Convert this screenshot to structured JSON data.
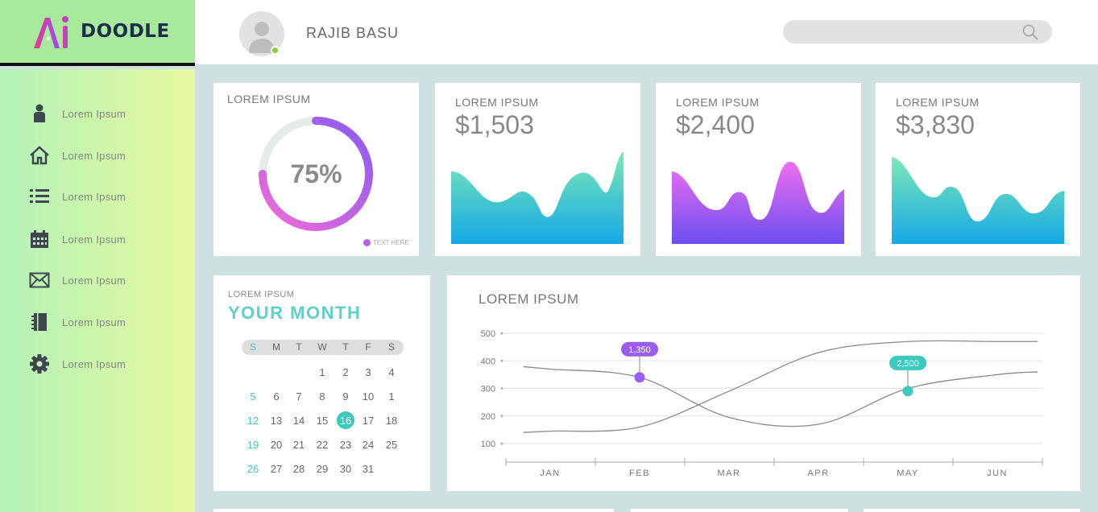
{
  "brand": {
    "logo_text": "DOODLE",
    "logo_mark": "Ai"
  },
  "header": {
    "user_name": "RAJIB BASU",
    "search_placeholder": ""
  },
  "sidebar": {
    "items": [
      {
        "label": "Lorem Ipsum",
        "icon": "user-icon"
      },
      {
        "label": "Lorem Ipsum",
        "icon": "home-icon"
      },
      {
        "label": "Lorem Ipsum",
        "icon": "list-icon"
      },
      {
        "label": "Lorem Ipsum",
        "icon": "calendar-icon"
      },
      {
        "label": "Lorem Ipsum",
        "icon": "mail-icon"
      },
      {
        "label": "Lorem Ipsum",
        "icon": "notebook-icon"
      },
      {
        "label": "Lorem Ipsum",
        "icon": "gear-icon"
      }
    ]
  },
  "donut": {
    "title": "LOREM IPSUM",
    "percent_label": "75%",
    "percent": 0.75,
    "legend": "TEXT HERE"
  },
  "stats": [
    {
      "title": "LOREM IPSUM",
      "value": "$1,503"
    },
    {
      "title": "LOREM IPSUM",
      "value": "$2,400"
    },
    {
      "title": "LOREM IPSUM",
      "value": "$3,830"
    }
  ],
  "calendar": {
    "small_title": "LOREM IPSUM",
    "title": "YOUR MONTH",
    "weekdays": [
      "S",
      "M",
      "T",
      "W",
      "T",
      "F",
      "S"
    ],
    "weeks": [
      [
        "",
        "",
        "",
        "1",
        "2",
        "3",
        "4"
      ],
      [
        "5",
        "6",
        "7",
        "8",
        "9",
        "10",
        "1"
      ],
      [
        "12",
        "13",
        "14",
        "15",
        "16",
        "17",
        "18"
      ],
      [
        "19",
        "20",
        "21",
        "22",
        "23",
        "24",
        "25"
      ],
      [
        "26",
        "27",
        "28",
        "29",
        "30",
        "31",
        ""
      ]
    ],
    "selected": "16"
  },
  "line_chart_title": "LOREM IPSUM",
  "colors": {
    "teal": "#3dc9bd",
    "purple": "#9b5cf0",
    "pink": "#e86ce8",
    "green": "#a8ea9c"
  },
  "chart_data": {
    "type": "line",
    "x": [
      "JAN",
      "FEB",
      "MAR",
      "APR",
      "MAY",
      "JUN"
    ],
    "yticks": [
      100,
      200,
      300,
      400,
      500
    ],
    "ylim": [
      100,
      500
    ],
    "grid": true,
    "series": [
      {
        "name": "",
        "color": "#888888",
        "values": [
          370,
          340,
          195,
          170,
          300,
          350
        ]
      },
      {
        "name": "",
        "color": "#888888",
        "values": [
          145,
          160,
          290,
          430,
          470,
          470
        ]
      }
    ],
    "annotations": [
      {
        "label": "1,350",
        "x": "FEB",
        "y": 340,
        "color": "#9b5cf0"
      },
      {
        "label": "2,500",
        "x": "MAY",
        "y": 290,
        "color": "#3dc9bd"
      }
    ]
  }
}
